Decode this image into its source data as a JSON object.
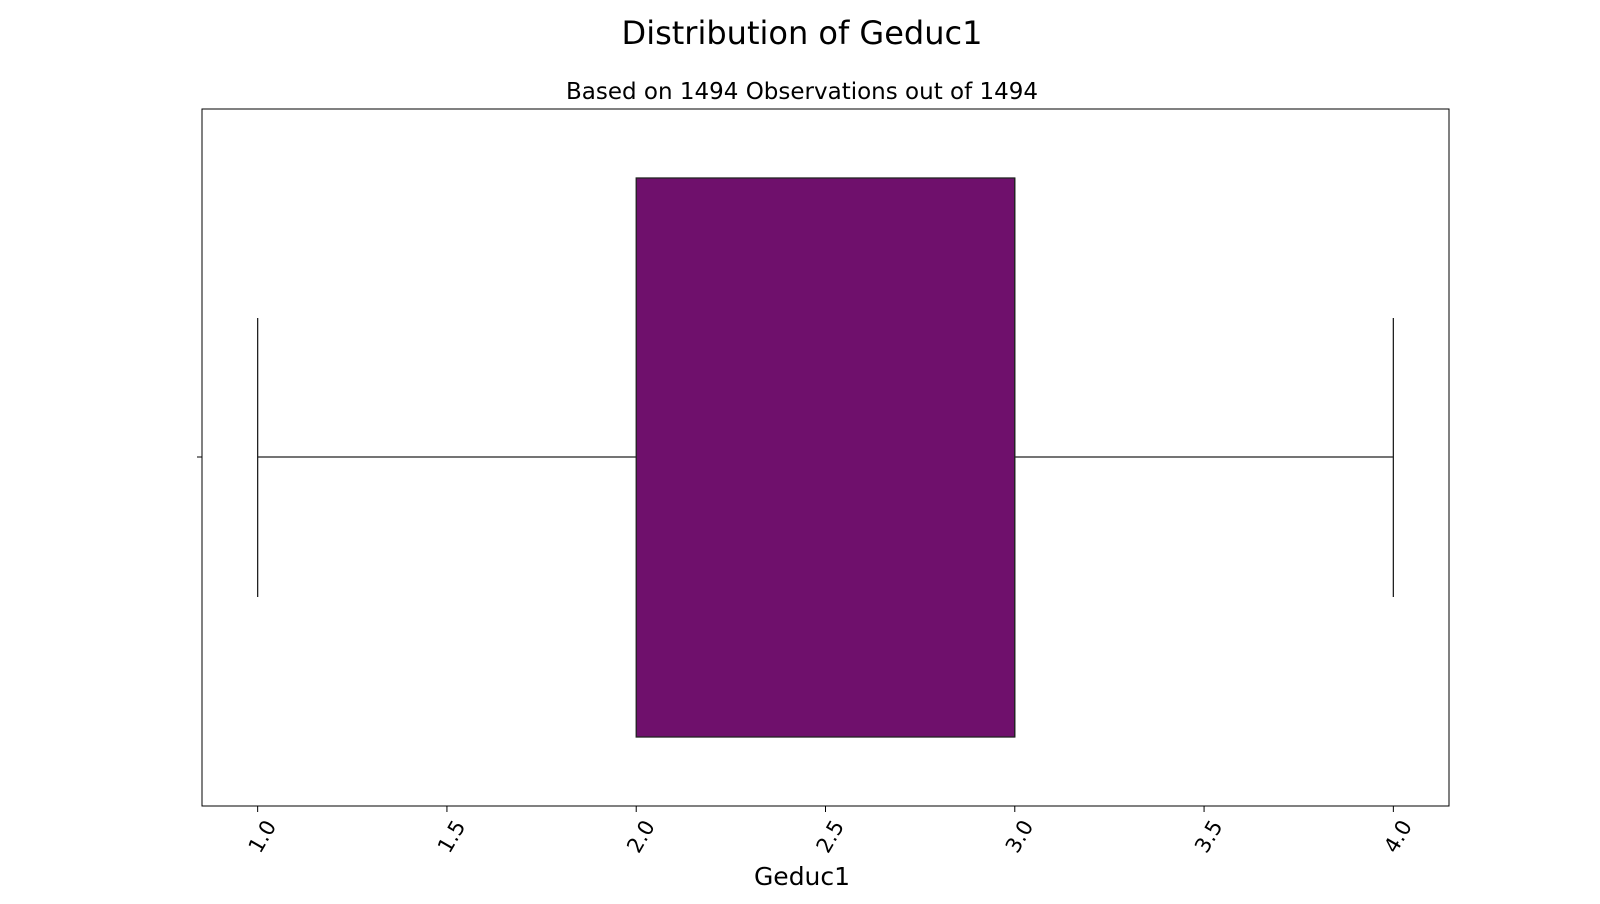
{
  "chart_data": {
    "type": "boxplot",
    "title": "Distribution of Geduc1",
    "subtitle": "Based on 1494 Observations out of 1494",
    "xlabel": "Geduc1",
    "ylabel": "",
    "xlim": [
      0.853,
      4.147
    ],
    "x_ticks": [
      1.0,
      1.5,
      2.0,
      2.5,
      3.0,
      3.5,
      4.0
    ],
    "x_tick_labels": [
      "1.0",
      "1.5",
      "2.0",
      "2.5",
      "3.0",
      "3.5",
      "4.0"
    ],
    "tick_label_rotation_deg": 60,
    "box": {
      "whisker_low": 1.0,
      "q1": 2.0,
      "median": 3.0,
      "q3": 3.0,
      "whisker_high": 4.0,
      "color": "#6f106c",
      "edge_color": "#222222"
    },
    "grid": false,
    "legend": "none"
  }
}
